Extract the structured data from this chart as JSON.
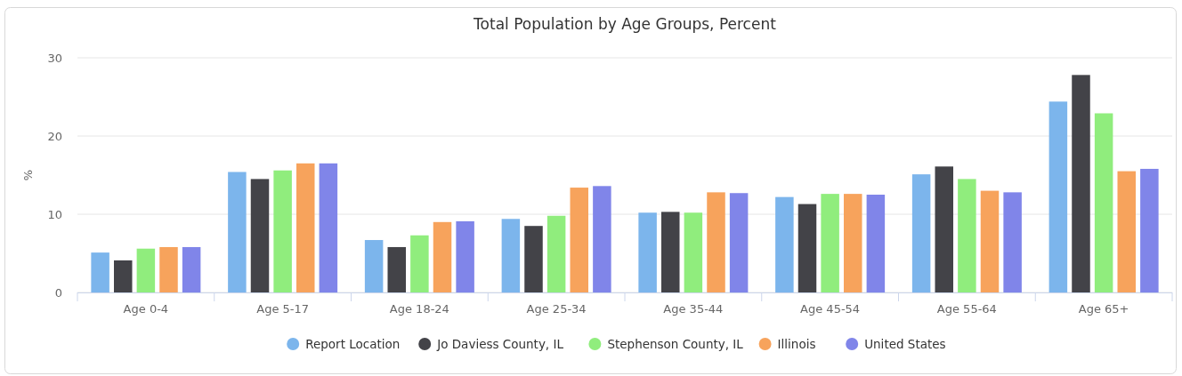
{
  "chart_data": {
    "type": "bar",
    "title": "Total Population by Age Groups, Percent",
    "ylabel": "%",
    "categories": [
      "Age 0-4",
      "Age 5-17",
      "Age 18-24",
      "Age 25-34",
      "Age 35-44",
      "Age 45-54",
      "Age 55-64",
      "Age 65+"
    ],
    "series": [
      {
        "name": "Report Location",
        "color": "#7cb5ec",
        "values": [
          5.1,
          15.4,
          6.7,
          9.4,
          10.2,
          12.2,
          15.1,
          24.4
        ]
      },
      {
        "name": "Jo Daviess County, IL",
        "color": "#434348",
        "values": [
          4.1,
          14.5,
          5.8,
          8.5,
          10.3,
          11.3,
          16.1,
          27.8
        ]
      },
      {
        "name": "Stephenson County, IL",
        "color": "#90ed7d",
        "values": [
          5.6,
          15.6,
          7.3,
          9.8,
          10.2,
          12.6,
          14.5,
          22.9
        ]
      },
      {
        "name": "Illinois",
        "color": "#f7a35c",
        "values": [
          5.8,
          16.5,
          9.0,
          13.4,
          12.8,
          12.6,
          13.0,
          15.5
        ]
      },
      {
        "name": "United States",
        "color": "#8085e9",
        "values": [
          5.8,
          16.5,
          9.1,
          13.6,
          12.7,
          12.5,
          12.8,
          15.8
        ]
      }
    ],
    "ylim": [
      0,
      30
    ],
    "yticks": [
      0,
      10,
      20,
      30
    ],
    "grid": "y",
    "legend": "bottom"
  }
}
